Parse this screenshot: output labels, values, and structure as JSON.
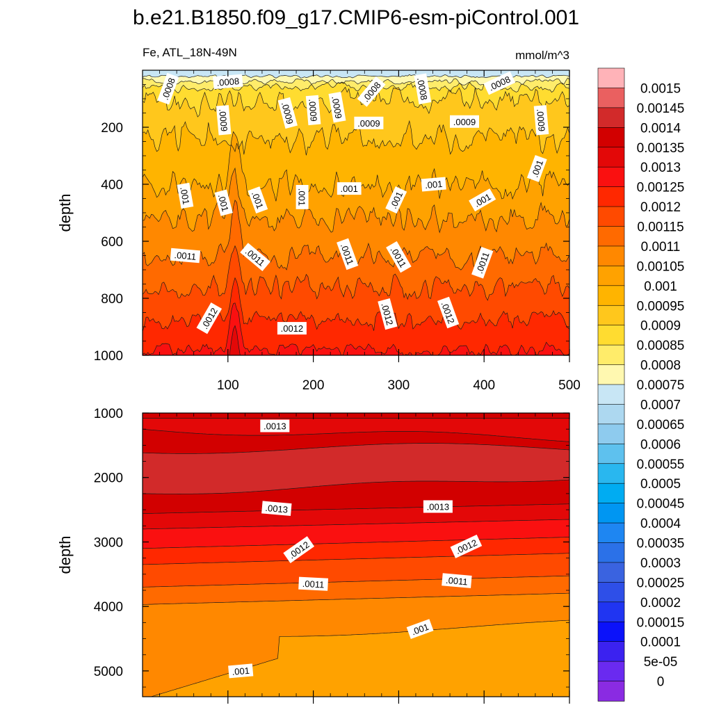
{
  "chart_data": {
    "type": "heatmap",
    "title": "b.e21.B1850.f09_g17.CMIP6-esm-piControl.001",
    "variable_label": "Fe, ATL_18N-49N",
    "units": "mmol/m^3",
    "ylabel": "depth",
    "x_tick_labels": [
      "100",
      "200",
      "300",
      "400",
      "500"
    ],
    "x_ticks": [
      100,
      200,
      300,
      400,
      500
    ],
    "top_panel": {
      "xlim": [
        0,
        500
      ],
      "ylim": [
        0,
        1000
      ],
      "y_ticks": [
        200,
        400,
        600,
        800,
        1000
      ],
      "y_tick_labels": [
        "200",
        "400",
        "600",
        "800",
        "1000"
      ],
      "contour_labels": [
        {
          "text": ".0008",
          "x": 30,
          "y": 65,
          "angle": -70
        },
        {
          "text": ".0008",
          "x": 100,
          "y": 40,
          "angle": -5
        },
        {
          "text": ".0009",
          "x": 95,
          "y": 175,
          "angle": 85
        },
        {
          "text": ".0009",
          "x": 170,
          "y": 150,
          "angle": 75
        },
        {
          "text": ".0009",
          "x": 200,
          "y": 140,
          "angle": 85
        },
        {
          "text": ".0009",
          "x": 228,
          "y": 130,
          "angle": 80
        },
        {
          "text": ".0008",
          "x": 268,
          "y": 75,
          "angle": -50
        },
        {
          "text": ".0008",
          "x": 328,
          "y": 65,
          "angle": 80
        },
        {
          "text": ".0008",
          "x": 418,
          "y": 45,
          "angle": -25
        },
        {
          "text": ".0009",
          "x": 265,
          "y": 185,
          "angle": 0
        },
        {
          "text": ".0009",
          "x": 377,
          "y": 180,
          "angle": 0
        },
        {
          "text": ".0009",
          "x": 467,
          "y": 175,
          "angle": 85
        },
        {
          "text": ".001",
          "x": 50,
          "y": 440,
          "angle": 80
        },
        {
          "text": ".001",
          "x": 95,
          "y": 465,
          "angle": 75
        },
        {
          "text": ".001",
          "x": 135,
          "y": 455,
          "angle": 70
        },
        {
          "text": ".001",
          "x": 187,
          "y": 445,
          "angle": 90
        },
        {
          "text": ".001",
          "x": 242,
          "y": 415,
          "angle": 0
        },
        {
          "text": ".001",
          "x": 297,
          "y": 455,
          "angle": -65
        },
        {
          "text": ".001",
          "x": 341,
          "y": 400,
          "angle": -5
        },
        {
          "text": ".001",
          "x": 398,
          "y": 455,
          "angle": -30
        },
        {
          "text": ".001",
          "x": 462,
          "y": 345,
          "angle": -70
        },
        {
          "text": ".0011",
          "x": 50,
          "y": 650,
          "angle": 5
        },
        {
          "text": ".0011",
          "x": 132,
          "y": 655,
          "angle": 40
        },
        {
          "text": ".0011",
          "x": 240,
          "y": 645,
          "angle": 70
        },
        {
          "text": ".0011",
          "x": 300,
          "y": 655,
          "angle": 60
        },
        {
          "text": ".0011",
          "x": 398,
          "y": 675,
          "angle": -70
        },
        {
          "text": ".0012",
          "x": 78,
          "y": 870,
          "angle": -60
        },
        {
          "text": ".0012",
          "x": 175,
          "y": 905,
          "angle": 0
        },
        {
          "text": ".0012",
          "x": 287,
          "y": 855,
          "angle": 75
        },
        {
          "text": ".0012",
          "x": 358,
          "y": 850,
          "angle": 70
        }
      ]
    },
    "bottom_panel": {
      "xlim": [
        0,
        500
      ],
      "ylim": [
        1000,
        5400
      ],
      "y_ticks": [
        1000,
        2000,
        3000,
        4000,
        5000
      ],
      "y_tick_labels": [
        "1000",
        "2000",
        "3000",
        "4000",
        "5000"
      ],
      "contour_labels": [
        {
          "text": ".0013",
          "x": 155,
          "y": 1200,
          "angle": 0
        },
        {
          "text": ".0013",
          "x": 157,
          "y": 2480,
          "angle": 5
        },
        {
          "text": ".0013",
          "x": 346,
          "y": 2450,
          "angle": 0
        },
        {
          "text": ".0012",
          "x": 183,
          "y": 3120,
          "angle": -35
        },
        {
          "text": ".0012",
          "x": 379,
          "y": 3070,
          "angle": -25
        },
        {
          "text": ".0011",
          "x": 200,
          "y": 3650,
          "angle": 3
        },
        {
          "text": ".0011",
          "x": 368,
          "y": 3600,
          "angle": 5
        },
        {
          "text": ".001",
          "x": 325,
          "y": 4350,
          "angle": -20
        },
        {
          "text": ".001",
          "x": 115,
          "y": 5000,
          "angle": -5
        }
      ]
    },
    "colorbar": {
      "levels": [
        "0.0015",
        "0.00145",
        "0.0014",
        "0.00135",
        "0.0013",
        "0.00125",
        "0.0012",
        "0.00115",
        "0.0011",
        "0.00105",
        "0.001",
        "0.00095",
        "0.0009",
        "0.00085",
        "0.0008",
        "0.00075",
        "0.0007",
        "0.00065",
        "0.0006",
        "0.00055",
        "0.0005",
        "0.00045",
        "0.0004",
        "0.00035",
        "0.0003",
        "0.00025",
        "0.0002",
        "0.00015",
        "0.0001",
        "5e-05",
        "0"
      ],
      "colors": [
        "#ffb3b8",
        "#ea6060",
        "#d22a2a",
        "#d20000",
        "#e30808",
        "#fa1010",
        "#ff2800",
        "#ff4a00",
        "#ff6a00",
        "#ff8800",
        "#ffa200",
        "#ffb400",
        "#ffc71c",
        "#ffdc30",
        "#ffec6a",
        "#fff8b0",
        "#c8e6f5",
        "#add8f0",
        "#8ecbee",
        "#5ec1ee",
        "#29b7ef",
        "#00acf2",
        "#0096f2",
        "#1e86f2",
        "#2b71e8",
        "#3a63e0",
        "#2e4fe8",
        "#2035f2",
        "#0b12fa",
        "#3b22f0",
        "#6a2af0",
        "#8a2be2"
      ]
    }
  }
}
